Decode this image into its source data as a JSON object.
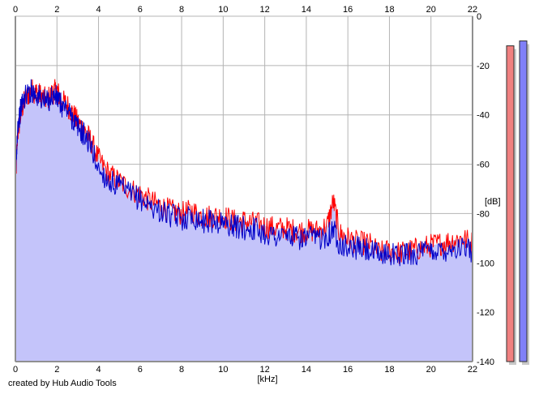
{
  "footer": {
    "credit": "created by Hub Audio Tools"
  },
  "chart_data": {
    "type": "line",
    "title": "",
    "xlabel": "[kHz]",
    "ylabel": "[dB]",
    "xlim": [
      0,
      22
    ],
    "ylim": [
      -140,
      0
    ],
    "x_ticks": [
      "0",
      "2",
      "4",
      "6",
      "8",
      "10",
      "12",
      "14",
      "16",
      "18",
      "20",
      "22"
    ],
    "y_ticks": [
      "0",
      "-20",
      "-40",
      "-60",
      "-80",
      "-100",
      "-120",
      "-140"
    ],
    "grid": true,
    "area_fill_color": "#c4c4fa",
    "series": [
      {
        "color": "#ff0000",
        "x": [
          0,
          0.1,
          0.3,
          0.5,
          0.8,
          1.0,
          1.2,
          1.5,
          1.8,
          2.0,
          2.2,
          2.5,
          2.8,
          3.0,
          3.3,
          3.6,
          4.0,
          4.5,
          5.0,
          5.5,
          6.0,
          6.5,
          7.0,
          7.5,
          8.0,
          8.5,
          9.0,
          9.5,
          10.0,
          10.5,
          11.0,
          11.5,
          12.0,
          12.5,
          13.0,
          13.5,
          14.0,
          14.5,
          15.0,
          15.3,
          15.6,
          16.0,
          16.5,
          17.0,
          17.5,
          18.0,
          18.5,
          19.0,
          19.5,
          20.0,
          20.5,
          21.0,
          21.5,
          22.0
        ],
        "y": [
          -70,
          -48,
          -38,
          -33,
          -30,
          -31,
          -32,
          -34,
          -31,
          -30,
          -34,
          -36,
          -40,
          -43,
          -46,
          -50,
          -58,
          -64,
          -67,
          -70,
          -72,
          -75,
          -77,
          -79,
          -80,
          -79,
          -81,
          -81,
          -81,
          -83,
          -83,
          -84,
          -85,
          -86,
          -86,
          -87,
          -87,
          -87,
          -85,
          -75,
          -88,
          -90,
          -92,
          -92,
          -96,
          -95,
          -96,
          -95,
          -94,
          -93,
          -92,
          -91,
          -90,
          -92
        ]
      },
      {
        "color": "#0000c8",
        "x": [
          0,
          0.1,
          0.3,
          0.5,
          0.8,
          1.0,
          1.2,
          1.5,
          1.8,
          2.0,
          2.2,
          2.5,
          2.8,
          3.0,
          3.3,
          3.6,
          4.0,
          4.5,
          5.0,
          5.5,
          6.0,
          6.5,
          7.0,
          7.5,
          8.0,
          8.5,
          9.0,
          9.5,
          10.0,
          10.5,
          11.0,
          11.5,
          12.0,
          12.5,
          13.0,
          13.5,
          14.0,
          14.5,
          15.0,
          15.3,
          15.6,
          16.0,
          16.5,
          17.0,
          17.5,
          18.0,
          18.5,
          19.0,
          19.5,
          20.0,
          20.5,
          21.0,
          21.5,
          22.0
        ],
        "y": [
          -68,
          -45,
          -36,
          -32,
          -30,
          -32,
          -33,
          -35,
          -32,
          -33,
          -36,
          -38,
          -42,
          -45,
          -48,
          -52,
          -62,
          -67,
          -69,
          -72,
          -74,
          -77,
          -79,
          -81,
          -82,
          -81,
          -83,
          -83,
          -84,
          -85,
          -86,
          -86,
          -88,
          -89,
          -89,
          -90,
          -90,
          -90,
          -89,
          -86,
          -92,
          -94,
          -94,
          -95,
          -97,
          -96,
          -97,
          -96,
          -96,
          -95,
          -95,
          -94,
          -94,
          -95
        ]
      }
    ]
  },
  "level_meters": [
    {
      "color": "#f08080",
      "value": -12
    },
    {
      "color": "#8080f8",
      "value": -10
    }
  ]
}
